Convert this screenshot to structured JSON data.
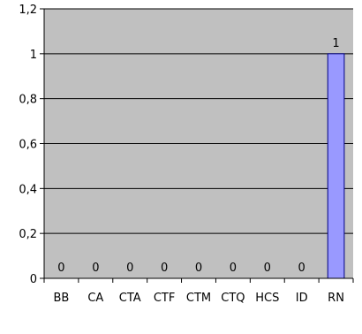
{
  "chart_data": {
    "type": "bar",
    "categories": [
      "BB",
      "CA",
      "CTA",
      "CTF",
      "CTM",
      "CTQ",
      "HCS",
      "ID",
      "RN"
    ],
    "values": [
      0,
      0,
      0,
      0,
      0,
      0,
      0,
      0,
      1
    ],
    "data_labels": [
      "0",
      "0",
      "0",
      "0",
      "0",
      "0",
      "0",
      "0",
      "1"
    ],
    "ylim": [
      0,
      1.2
    ],
    "yticks": [
      0,
      0.2,
      0.4,
      0.6,
      0.8,
      1,
      1.2
    ],
    "ytick_labels": [
      "0",
      "0,2",
      "0,4",
      "0,6",
      "0,8",
      "1",
      "1,2"
    ],
    "grid": true,
    "legend": "none",
    "colors": {
      "plot_background": "#c0c0c0",
      "bar_fill": "#9999ff",
      "bar_stroke": "#000080",
      "grid": "#000000",
      "axis": "#000000"
    }
  }
}
